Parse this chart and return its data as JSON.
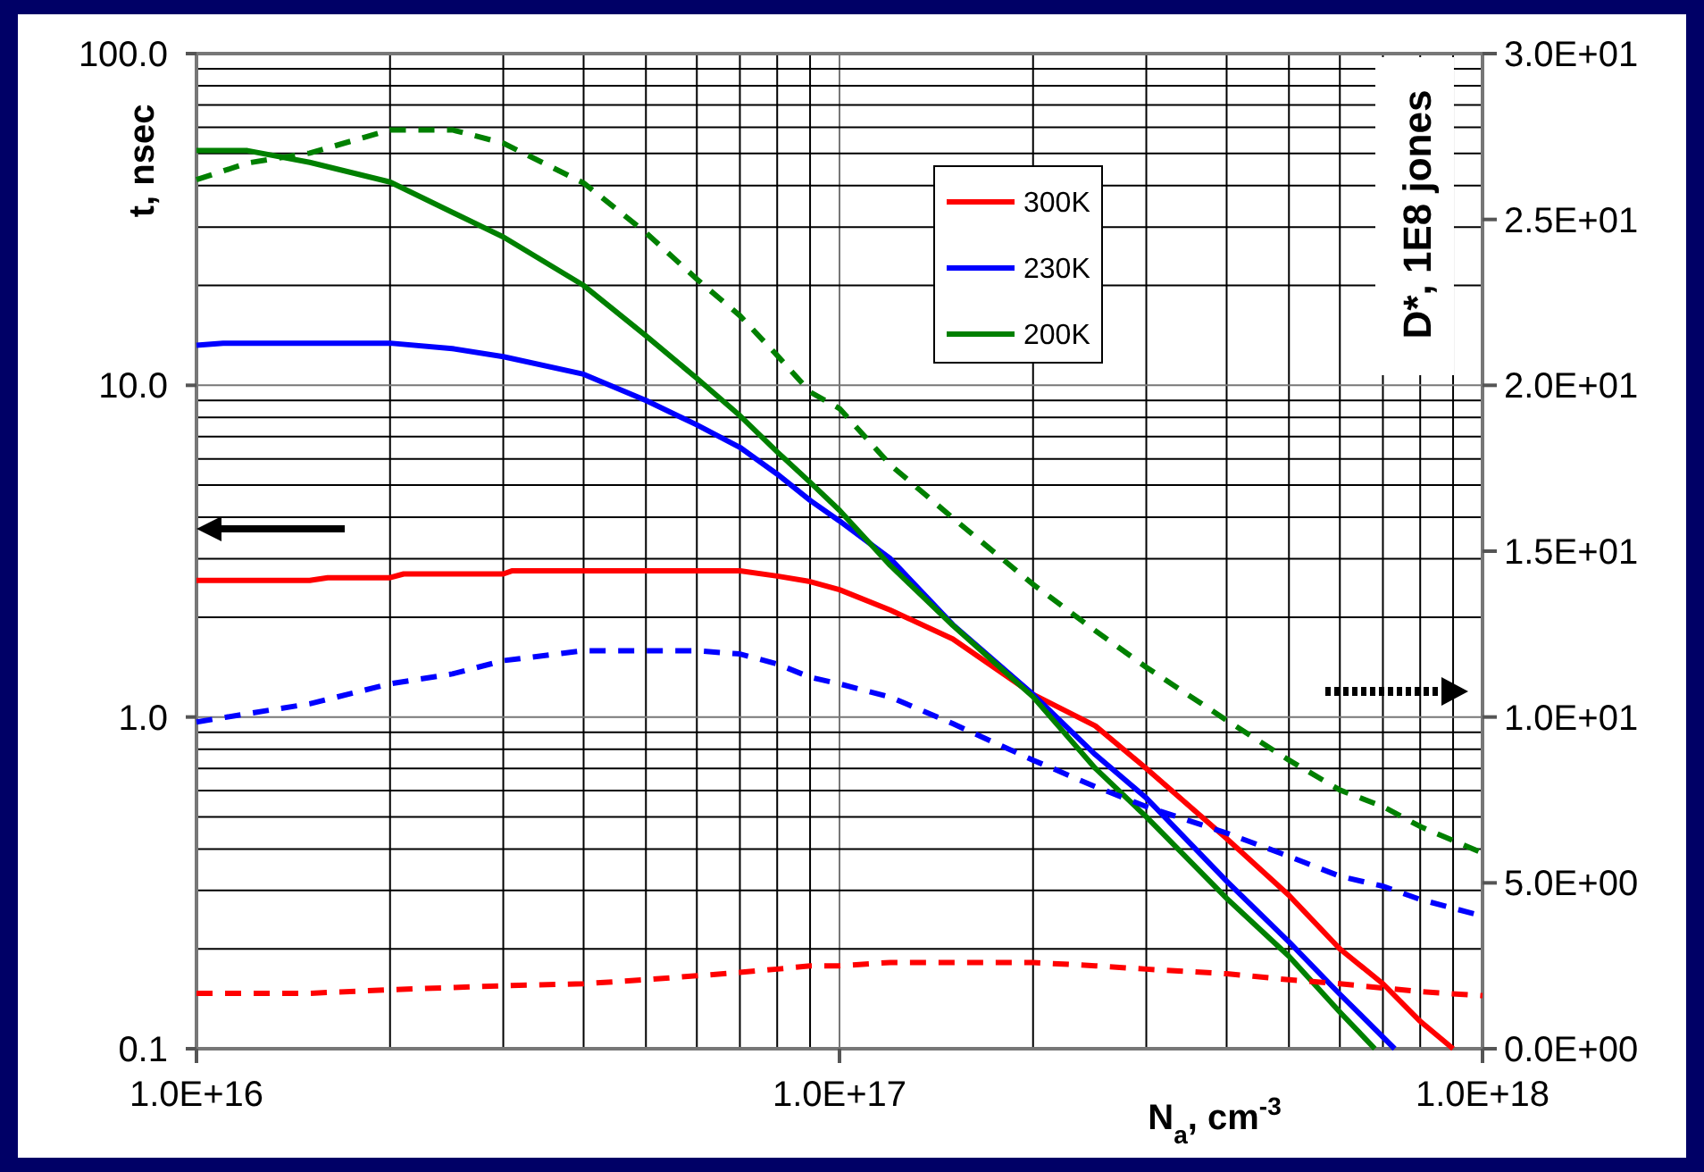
{
  "chart_data": {
    "type": "line",
    "ylabel": "t, nsec",
    "y2label": "D*, 1E8 jones",
    "xlabel": "N$_{a}$, cm$^{-3}$",
    "log": "xy",
    "grid": true,
    "legend": "top",
    "marker": "none",
    "xlim": [
      1e+16,
      1e+18
    ],
    "xticks": [
      {
        "value": 1e+16,
        "label": "1.0E+16"
      },
      {
        "value": 2e+16,
        "label": null
      },
      {
        "value": 3e+16,
        "label": null
      },
      {
        "value": 4e+16,
        "label": null
      },
      {
        "value": 5e+16,
        "label": null
      },
      {
        "value": 6e+16,
        "label": null
      },
      {
        "value": 7e+16,
        "label": null
      },
      {
        "value": 8e+16,
        "label": null
      },
      {
        "value": 9e+16,
        "label": null
      },
      {
        "value": 1e+17,
        "label": "1.0E+17"
      },
      {
        "value": 2e+17,
        "label": null
      },
      {
        "value": 3e+17,
        "label": null
      },
      {
        "value": 4e+17,
        "label": null
      },
      {
        "value": 5e+17,
        "label": null
      },
      {
        "value": 6e+17,
        "label": null
      },
      {
        "value": 7e+17,
        "label": null
      },
      {
        "value": 8e+17,
        "label": null
      },
      {
        "value": 9e+17,
        "label": null
      },
      {
        "value": 1e+18,
        "label": "1.0E+18"
      }
    ],
    "ylim": [
      0.1,
      100
    ],
    "yticks": [
      {
        "value": 0.1,
        "label": "0.1"
      },
      {
        "value": 0.2,
        "label": null
      },
      {
        "value": 0.3,
        "label": null
      },
      {
        "value": 0.4,
        "label": null
      },
      {
        "value": 0.5,
        "label": null
      },
      {
        "value": 0.6,
        "label": null
      },
      {
        "value": 0.7,
        "label": null
      },
      {
        "value": 0.8,
        "label": null
      },
      {
        "value": 0.9,
        "label": null
      },
      {
        "value": 1,
        "label": "1.0"
      },
      {
        "value": 2,
        "label": null
      },
      {
        "value": 3,
        "label": null
      },
      {
        "value": 4,
        "label": null
      },
      {
        "value": 5,
        "label": null
      },
      {
        "value": 6,
        "label": null
      },
      {
        "value": 7,
        "label": null
      },
      {
        "value": 8,
        "label": null
      },
      {
        "value": 9,
        "label": null
      },
      {
        "value": 10,
        "label": "10.0"
      },
      {
        "value": 20,
        "label": null
      },
      {
        "value": 30,
        "label": null
      },
      {
        "value": 40,
        "label": null
      },
      {
        "value": 50,
        "label": null
      },
      {
        "value": 60,
        "label": null
      },
      {
        "value": 70,
        "label": null
      },
      {
        "value": 80,
        "label": null
      },
      {
        "value": 90,
        "label": null
      },
      {
        "value": 100,
        "label": "100.0"
      }
    ],
    "y2lim": [
      0,
      30
    ],
    "y2ticks": [
      {
        "value": 0,
        "label": "0.0E+00"
      },
      {
        "value": 5,
        "label": "5.0E+00"
      },
      {
        "value": 10,
        "label": "1.0E+01"
      },
      {
        "value": 15,
        "label": "1.5E+01"
      },
      {
        "value": 20,
        "label": "2.0E+01"
      },
      {
        "value": 25,
        "label": "2.5E+01"
      },
      {
        "value": 30,
        "label": "3.0E+01"
      }
    ],
    "series": [
      {
        "name": "300K",
        "color": "#ff0000",
        "line_style": "solid",
        "x": [
          1e+16,
          1.5e+16,
          1.6e+16,
          2e+16,
          2.1e+16,
          3e+16,
          3.1e+16,
          5e+16,
          7e+16,
          8e+16,
          9e+16,
          1e+17,
          1.2e+17,
          1.5e+17,
          2e+17,
          2.5e+17,
          3e+17,
          4e+17,
          5e+17,
          6e+17,
          7e+17,
          8e+17,
          9e+17
        ],
        "values": [
          2.58,
          2.58,
          2.63,
          2.63,
          2.7,
          2.7,
          2.76,
          2.76,
          2.76,
          2.66,
          2.56,
          2.42,
          2.1,
          1.72,
          1.17,
          0.94,
          0.7,
          0.43,
          0.29,
          0.2,
          0.157,
          0.121,
          0.1
        ]
      },
      {
        "name": "230K",
        "color": "#0000ff",
        "line_style": "solid",
        "x": [
          1e+16,
          1.1e+16,
          1.5e+16,
          2e+16,
          2.5e+16,
          3e+16,
          4e+16,
          5e+16,
          6e+16,
          7e+16,
          8e+16,
          9e+16,
          1e+17,
          1.2e+17,
          1.5e+17,
          2e+17,
          2.5e+17,
          3e+17,
          4e+17,
          5e+17,
          6e+17,
          7.3e+17
        ],
        "values": [
          13.2,
          13.4,
          13.4,
          13.4,
          12.9,
          12.2,
          10.8,
          9.0,
          7.6,
          6.5,
          5.4,
          4.5,
          3.9,
          3.0,
          1.9,
          1.17,
          0.77,
          0.57,
          0.32,
          0.21,
          0.146,
          0.1
        ]
      },
      {
        "name": "200K",
        "color": "#008000",
        "line_style": "solid",
        "x": [
          1e+16,
          1.2e+16,
          1.5e+16,
          2e+16,
          3e+16,
          4e+16,
          5e+16,
          6e+16,
          7e+16,
          8e+16,
          9e+16,
          1e+17,
          1.2e+17,
          1.5e+17,
          2e+17,
          2.5e+17,
          3e+17,
          4e+17,
          5e+17,
          6e+17,
          6.8e+17
        ],
        "values": [
          51,
          51,
          47,
          41,
          28,
          20,
          14.1,
          10.5,
          8.1,
          6.3,
          5.1,
          4.2,
          2.86,
          1.89,
          1.15,
          0.7,
          0.5,
          0.284,
          0.19,
          0.129,
          0.1
        ]
      },
      {
        "color": "#ff0000",
        "line_style": "dashed",
        "axis": "y2",
        "x": [
          1e+16,
          1.5e+16,
          2e+16,
          3e+16,
          4e+16,
          5e+16,
          6e+16,
          7e+16,
          8e+16,
          9e+16,
          1e+17,
          1.2e+17,
          2e+17,
          2.5e+17,
          3e+17,
          4e+17,
          5e+17,
          6e+17,
          8e+17,
          1e+18
        ],
        "values": [
          1.67,
          1.67,
          1.78,
          1.9,
          1.96,
          2.08,
          2.2,
          2.3,
          2.4,
          2.5,
          2.5,
          2.6,
          2.6,
          2.5,
          2.4,
          2.26,
          2.08,
          1.96,
          1.72,
          1.6
        ]
      },
      {
        "color": "#0000ff",
        "line_style": "dashed",
        "axis": "y2",
        "x": [
          1e+16,
          1.2e+16,
          1.5e+16,
          2e+16,
          2.5e+16,
          3e+16,
          4e+16,
          5e+16,
          6e+16,
          7e+16,
          8e+16,
          9e+16,
          1e+17,
          1.2e+17,
          1.5e+17,
          2e+17,
          2.5e+17,
          3e+17,
          4e+17,
          5e+17,
          6e+17,
          7e+17,
          8e+17,
          1e+18
        ],
        "values": [
          9.85,
          10.1,
          10.4,
          11.0,
          11.3,
          11.7,
          12.0,
          12.0,
          12.0,
          11.9,
          11.6,
          11.2,
          11.0,
          10.6,
          9.8,
          8.7,
          7.9,
          7.3,
          6.5,
          5.8,
          5.2,
          4.9,
          4.5,
          4.0
        ]
      },
      {
        "color": "#008000",
        "line_style": "dashed",
        "axis": "y2",
        "x": [
          1e+16,
          1.2e+16,
          1.5e+16,
          2e+16,
          2.5e+16,
          3e+16,
          4e+16,
          5e+16,
          6e+16,
          7e+16,
          8e+16,
          9e+16,
          1e+17,
          1.2e+17,
          1.5e+17,
          2e+17,
          2.5e+17,
          3e+17,
          4e+17,
          5e+17,
          6e+17,
          7e+17,
          8e+17,
          1e+18
        ],
        "values": [
          26.2,
          26.7,
          27.0,
          27.7,
          27.7,
          27.3,
          26.1,
          24.6,
          23.2,
          22.1,
          20.9,
          19.8,
          19.3,
          17.6,
          16.0,
          14.0,
          12.6,
          11.5,
          9.9,
          8.7,
          7.8,
          7.3,
          6.7,
          5.9
        ]
      }
    ]
  }
}
